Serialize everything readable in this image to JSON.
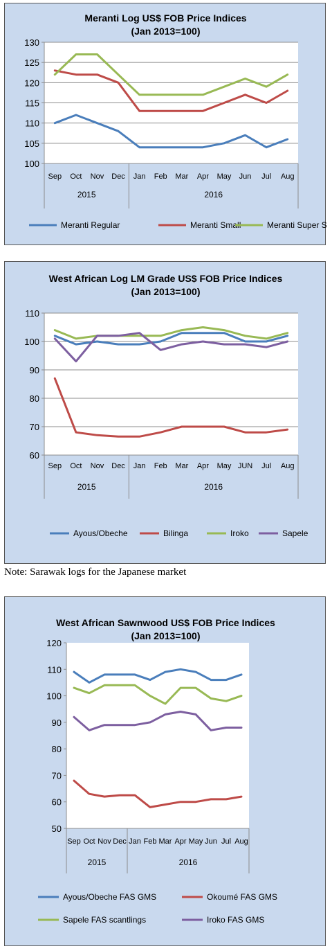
{
  "note": "Note: Sarawak logs for the Japanese market",
  "chart_data": [
    {
      "type": "line",
      "title": "Meranti Log US$ FOB Price Indices",
      "subtitle": "(Jan 2013=100)",
      "categories": [
        "Sep",
        "Oct",
        "Nov",
        "Dec",
        "Jan",
        "Feb",
        "Mar",
        "Apr",
        "May",
        "Jun",
        "Jul",
        "Aug"
      ],
      "groups": [
        {
          "label": "2015",
          "start": 0,
          "end": 3
        },
        {
          "label": "2016",
          "start": 4,
          "end": 11
        }
      ],
      "ylim": [
        100,
        130
      ],
      "ystep": 5,
      "grid": true,
      "legend": "bottom",
      "series": [
        {
          "name": "Meranti Regular",
          "color": "#4a7ebb",
          "values": [
            110,
            112,
            110,
            108,
            104,
            104,
            104,
            104,
            105,
            107,
            104,
            106
          ]
        },
        {
          "name": "Meranti Small",
          "color": "#be4b48",
          "values": [
            123,
            122,
            122,
            120,
            113,
            113,
            113,
            113,
            115,
            117,
            115,
            118
          ]
        },
        {
          "name": "Meranti Super Small",
          "color": "#98b954",
          "values": [
            122,
            127,
            127,
            122,
            117,
            117,
            117,
            117,
            119,
            121,
            119,
            122
          ]
        }
      ]
    },
    {
      "type": "line",
      "title": "West African Log LM Grade US$ FOB Price Indices",
      "subtitle": "(Jan 2013=100)",
      "categories": [
        "Sep",
        "Oct",
        "Nov",
        "Dec",
        "Jan",
        "Feb",
        "Mar",
        "Apr",
        "May",
        "JUN",
        "Jul",
        "Aug"
      ],
      "groups": [
        {
          "label": "2015",
          "start": 0,
          "end": 3
        },
        {
          "label": "2016",
          "start": 4,
          "end": 11
        }
      ],
      "ylim": [
        60,
        110
      ],
      "ystep": 10,
      "grid": true,
      "legend": "bottom",
      "series": [
        {
          "name": "Ayous/Obeche",
          "color": "#4a7ebb",
          "values": [
            102,
            99,
            100,
            99,
            99,
            100,
            103,
            103,
            103,
            100,
            100,
            102
          ]
        },
        {
          "name": "Bilinga",
          "color": "#be4b48",
          "values": [
            87,
            68,
            67,
            66.5,
            66.5,
            68,
            70,
            70,
            70,
            68,
            68,
            69
          ]
        },
        {
          "name": "Iroko",
          "color": "#98b954",
          "values": [
            104,
            101,
            102,
            102,
            102,
            102,
            104,
            105,
            104,
            102,
            101,
            103
          ]
        },
        {
          "name": "Sapele",
          "color": "#7d5fa0",
          "values": [
            101,
            93,
            102,
            102,
            103,
            97,
            99,
            100,
            99,
            99,
            98,
            100
          ]
        }
      ]
    },
    {
      "type": "line",
      "title": "West African Sawnwood US$ FOB Price Indices",
      "subtitle": "(Jan 2013=100)",
      "categories": [
        "Sep",
        "Oct",
        "Nov",
        "Dec",
        "Jan",
        "Feb",
        "Mar",
        "Apr",
        "May",
        "Jun",
        "Jul",
        "Aug"
      ],
      "groups": [
        {
          "label": "2015",
          "start": 0,
          "end": 3
        },
        {
          "label": "2016",
          "start": 4,
          "end": 11
        }
      ],
      "ylim": [
        50,
        120
      ],
      "ystep": 10,
      "grid": false,
      "legend": "bottom",
      "series": [
        {
          "name": "Ayous/Obeche FAS GMS",
          "color": "#4a7ebb",
          "values": [
            109,
            105,
            108,
            108,
            108,
            106,
            109,
            110,
            109,
            106,
            106,
            108
          ]
        },
        {
          "name": "Okoumé FAS GMS",
          "color": "#be4b48",
          "values": [
            68,
            63,
            62,
            62.5,
            62.5,
            58,
            59,
            60,
            60,
            61,
            61,
            62
          ]
        },
        {
          "name": "Sapele FAS scantlings",
          "color": "#98b954",
          "values": [
            103,
            101,
            104,
            104,
            104,
            100,
            97,
            103,
            103,
            99,
            98,
            100
          ]
        },
        {
          "name": "Iroko FAS GMS",
          "color": "#7d5fa0",
          "values": [
            92,
            87,
            89,
            89,
            89,
            90,
            93,
            94,
            93,
            87,
            88,
            88
          ]
        }
      ]
    }
  ]
}
